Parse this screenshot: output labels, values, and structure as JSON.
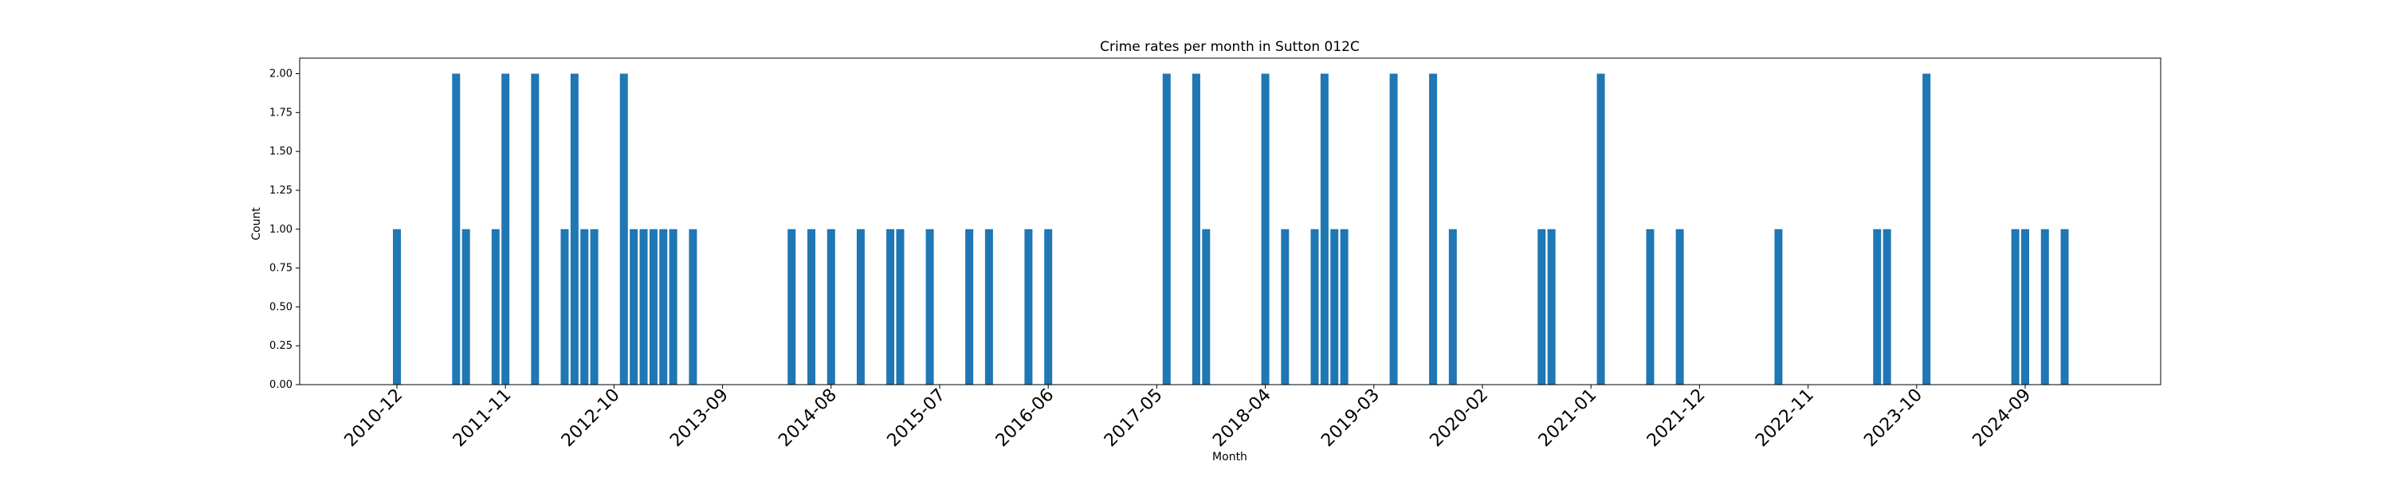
{
  "chart_data": {
    "type": "bar",
    "title": "Crime rates per month in Sutton 012C",
    "xlabel": "Month",
    "ylabel": "Count",
    "ylim": [
      0,
      2.1
    ],
    "yticks": [
      "0.00",
      "0.25",
      "0.50",
      "0.75",
      "1.00",
      "1.25",
      "1.50",
      "1.75",
      "2.00"
    ],
    "xticks": [
      "2010-12",
      "2011-11",
      "2012-10",
      "2013-09",
      "2014-08",
      "2015-07",
      "2016-06",
      "2017-05",
      "2018-04",
      "2019-03",
      "2020-02",
      "2021-01",
      "2021-12",
      "2022-11",
      "2023-10",
      "2024-09"
    ],
    "categories": [
      "2010-12",
      "2011-06",
      "2011-07",
      "2011-10",
      "2011-11",
      "2012-02",
      "2012-05",
      "2012-06",
      "2012-07",
      "2012-08",
      "2012-11",
      "2012-12",
      "2013-01",
      "2013-02",
      "2013-03",
      "2013-04",
      "2013-06",
      "2014-04",
      "2014-06",
      "2014-08",
      "2014-11",
      "2015-02",
      "2015-03",
      "2015-06",
      "2015-10",
      "2015-12",
      "2016-04",
      "2016-06",
      "2017-06",
      "2017-09",
      "2017-10",
      "2018-04",
      "2018-06",
      "2018-09",
      "2018-10",
      "2018-11",
      "2018-12",
      "2019-05",
      "2019-09",
      "2019-11",
      "2020-08",
      "2020-09",
      "2021-02",
      "2021-07",
      "2021-10",
      "2022-08",
      "2023-06",
      "2023-07",
      "2023-11",
      "2024-08",
      "2024-09",
      "2024-11",
      "2025-01"
    ],
    "values": [
      1,
      2,
      1,
      1,
      2,
      2,
      1,
      2,
      1,
      1,
      2,
      1,
      1,
      1,
      1,
      1,
      1,
      1,
      1,
      1,
      1,
      1,
      1,
      1,
      1,
      1,
      1,
      1,
      2,
      2,
      1,
      2,
      1,
      1,
      2,
      1,
      1,
      2,
      2,
      1,
      1,
      1,
      2,
      1,
      1,
      1,
      1,
      1,
      2,
      1,
      1,
      1,
      1
    ],
    "bar_color": "#1f77b4",
    "grid": false,
    "legend": "none"
  }
}
